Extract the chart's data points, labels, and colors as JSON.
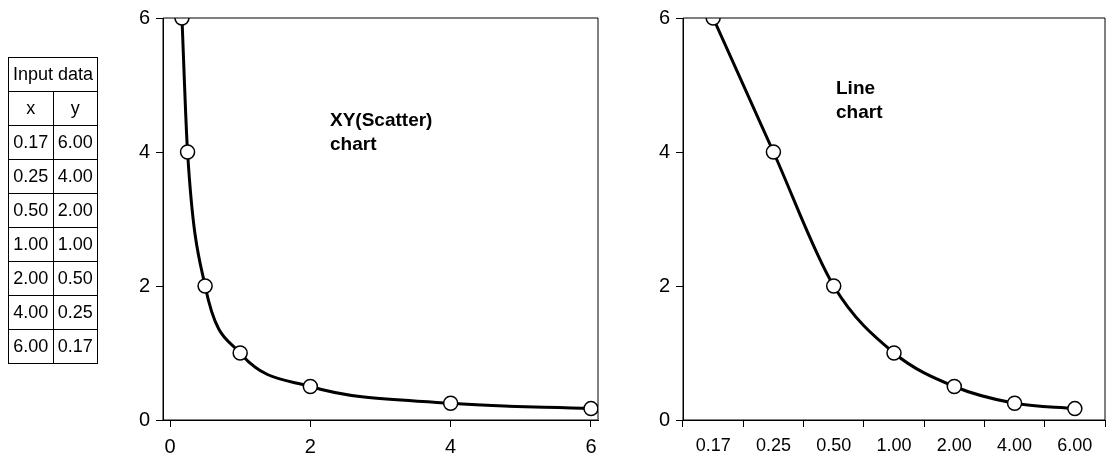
{
  "chart_data": [
    {
      "type": "line",
      "title": "XY(Scatter) chart",
      "x": [
        0.17,
        0.25,
        0.5,
        1,
        2,
        4,
        6
      ],
      "values": [
        6,
        4,
        2,
        1,
        0.5,
        0.25,
        0.17
      ],
      "color": "#000000",
      "marker": "circle",
      "line_style": "solid",
      "xlim": [
        -0.1,
        6.1
      ],
      "xticks": [
        0,
        2,
        4,
        6
      ],
      "ylim": [
        0,
        6
      ],
      "yticks": [
        0,
        2,
        4,
        6
      ],
      "grid": false,
      "legend": false,
      "annotations": [
        "Input data",
        "x",
        "y",
        "0.17",
        "6.00",
        "0.25",
        "4.00",
        "0.50",
        "2.00",
        "1.00",
        "1.00",
        "2.00",
        "0.50",
        "4.00",
        "0.25",
        "6.00",
        "0.17"
      ]
    },
    {
      "type": "line",
      "title": "Line chart",
      "categories": [
        "0.17",
        "0.25",
        "0.50",
        "1.00",
        "2.00",
        "4.00",
        "6.00"
      ],
      "values": [
        6,
        4,
        2,
        1,
        0.5,
        0.25,
        0.17
      ],
      "color": "#000000",
      "marker": "circle",
      "line_style": "solid",
      "ylim": [
        0,
        6
      ],
      "yticks": [
        0,
        2,
        4,
        6
      ],
      "grid": false,
      "legend": false
    }
  ]
}
